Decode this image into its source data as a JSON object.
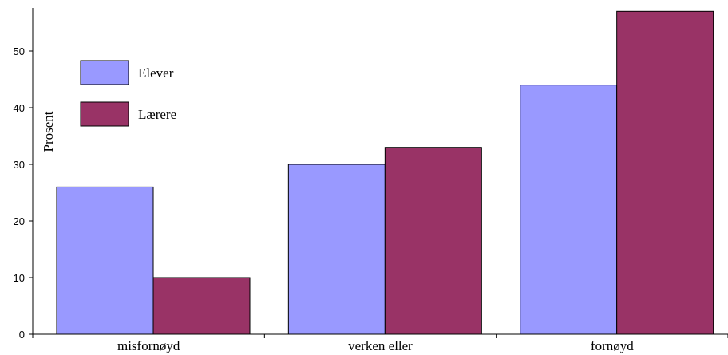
{
  "chart_data": {
    "type": "bar",
    "title": "",
    "xlabel": "",
    "ylabel": "Prosent",
    "ylim": [
      0,
      57
    ],
    "yticks": [
      0,
      10,
      20,
      30,
      40,
      50
    ],
    "grid": false,
    "legend_position": "top-left",
    "categories": [
      "misfornøyd",
      "verken eller",
      "fornøyd"
    ],
    "series": [
      {
        "name": "Elever",
        "color": "#9999ff",
        "values": [
          26,
          30,
          44
        ]
      },
      {
        "name": "Lærere",
        "color": "#993366",
        "values": [
          10,
          33,
          57
        ]
      }
    ]
  }
}
